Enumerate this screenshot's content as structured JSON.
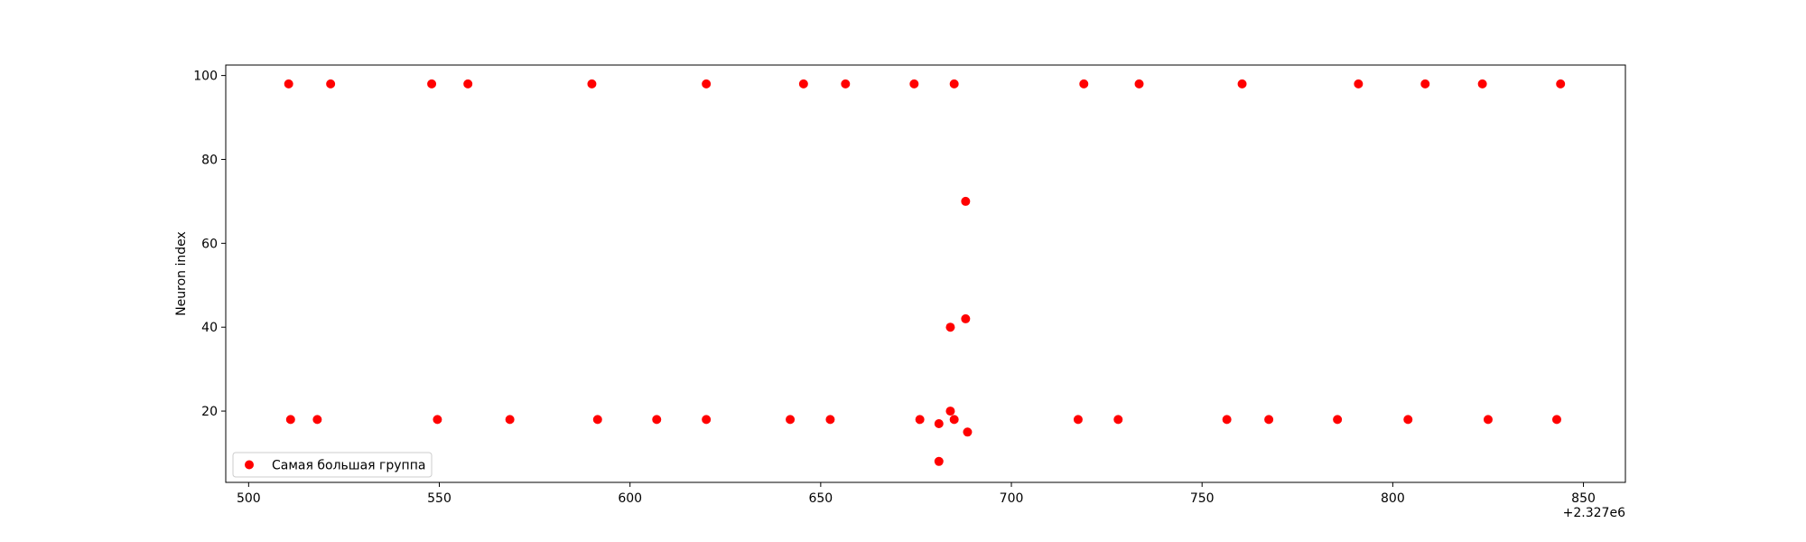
{
  "chart_data": {
    "type": "scatter",
    "title": "",
    "xlabel": "",
    "ylabel": "Neuron index",
    "x_offset_label": "+2.327e6",
    "xlim": [
      494,
      861
    ],
    "ylim": [
      3,
      102.5
    ],
    "xticks": [
      500,
      550,
      600,
      650,
      700,
      750,
      800,
      850
    ],
    "yticks": [
      20,
      40,
      60,
      80,
      100
    ],
    "grid": false,
    "legend_position": "lower-left",
    "series": [
      {
        "name": "Самая большая группа",
        "color": "#ff0000",
        "points": [
          {
            "x": 510.5,
            "y": 98
          },
          {
            "x": 521.5,
            "y": 98
          },
          {
            "x": 548,
            "y": 98
          },
          {
            "x": 557.5,
            "y": 98
          },
          {
            "x": 590,
            "y": 98
          },
          {
            "x": 620,
            "y": 98
          },
          {
            "x": 645.5,
            "y": 98
          },
          {
            "x": 656.5,
            "y": 98
          },
          {
            "x": 674.5,
            "y": 98
          },
          {
            "x": 685,
            "y": 98
          },
          {
            "x": 719,
            "y": 98
          },
          {
            "x": 733.5,
            "y": 98
          },
          {
            "x": 760.5,
            "y": 98
          },
          {
            "x": 791,
            "y": 98
          },
          {
            "x": 808.5,
            "y": 98
          },
          {
            "x": 823.5,
            "y": 98
          },
          {
            "x": 844,
            "y": 98
          },
          {
            "x": 688,
            "y": 70
          },
          {
            "x": 688,
            "y": 42
          },
          {
            "x": 684,
            "y": 40
          },
          {
            "x": 511,
            "y": 18
          },
          {
            "x": 518,
            "y": 18
          },
          {
            "x": 549.5,
            "y": 18
          },
          {
            "x": 568.5,
            "y": 18
          },
          {
            "x": 591.5,
            "y": 18
          },
          {
            "x": 607,
            "y": 18
          },
          {
            "x": 620,
            "y": 18
          },
          {
            "x": 642,
            "y": 18
          },
          {
            "x": 652.5,
            "y": 18
          },
          {
            "x": 676,
            "y": 18
          },
          {
            "x": 684,
            "y": 20
          },
          {
            "x": 685,
            "y": 18
          },
          {
            "x": 681,
            "y": 17
          },
          {
            "x": 688.5,
            "y": 15
          },
          {
            "x": 681,
            "y": 8
          },
          {
            "x": 717.5,
            "y": 18
          },
          {
            "x": 728,
            "y": 18
          },
          {
            "x": 756.5,
            "y": 18
          },
          {
            "x": 767.5,
            "y": 18
          },
          {
            "x": 785.5,
            "y": 18
          },
          {
            "x": 804,
            "y": 18
          },
          {
            "x": 825,
            "y": 18
          },
          {
            "x": 843,
            "y": 18
          }
        ]
      }
    ]
  }
}
